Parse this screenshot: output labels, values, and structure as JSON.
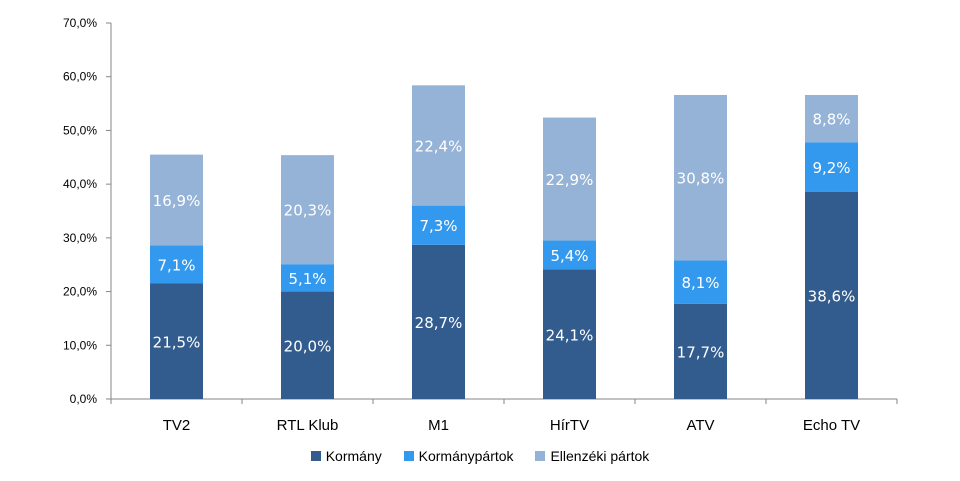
{
  "chart_data": {
    "type": "bar",
    "stacked": true,
    "categories": [
      "TV2",
      "RTL Klub",
      "M1",
      "HírTV",
      "ATV",
      "Echo TV"
    ],
    "series": [
      {
        "name": "Kormány",
        "color": "#335C8E",
        "values": [
          21.5,
          20.0,
          28.7,
          24.1,
          17.7,
          38.6
        ],
        "labels": [
          "21,5%",
          "20,0%",
          "28,7%",
          "24,1%",
          "17,7%",
          "38,6%"
        ]
      },
      {
        "name": "Kormánypártok",
        "color": "#3399EE",
        "values": [
          7.1,
          5.1,
          7.3,
          5.4,
          8.1,
          9.2
        ],
        "labels": [
          "7,1%",
          "5,1%",
          "7,3%",
          "5,4%",
          "8,1%",
          "9,2%"
        ]
      },
      {
        "name": "Ellenzéki pártok",
        "color": "#95B3D7",
        "values": [
          16.9,
          20.3,
          22.4,
          22.9,
          30.8,
          8.8
        ],
        "labels": [
          "16,9%",
          "20,3%",
          "22,4%",
          "22,9%",
          "30,8%",
          "8,8%"
        ]
      }
    ],
    "ylim": [
      0,
      70
    ],
    "yticks": [
      0,
      10,
      20,
      30,
      40,
      50,
      60,
      70
    ],
    "ytick_labels": [
      "0,0%",
      "10,0%",
      "20,0%",
      "30,0%",
      "40,0%",
      "50,0%",
      "60,0%",
      "70,0%"
    ],
    "grid": false,
    "legend_position": "bottom"
  }
}
